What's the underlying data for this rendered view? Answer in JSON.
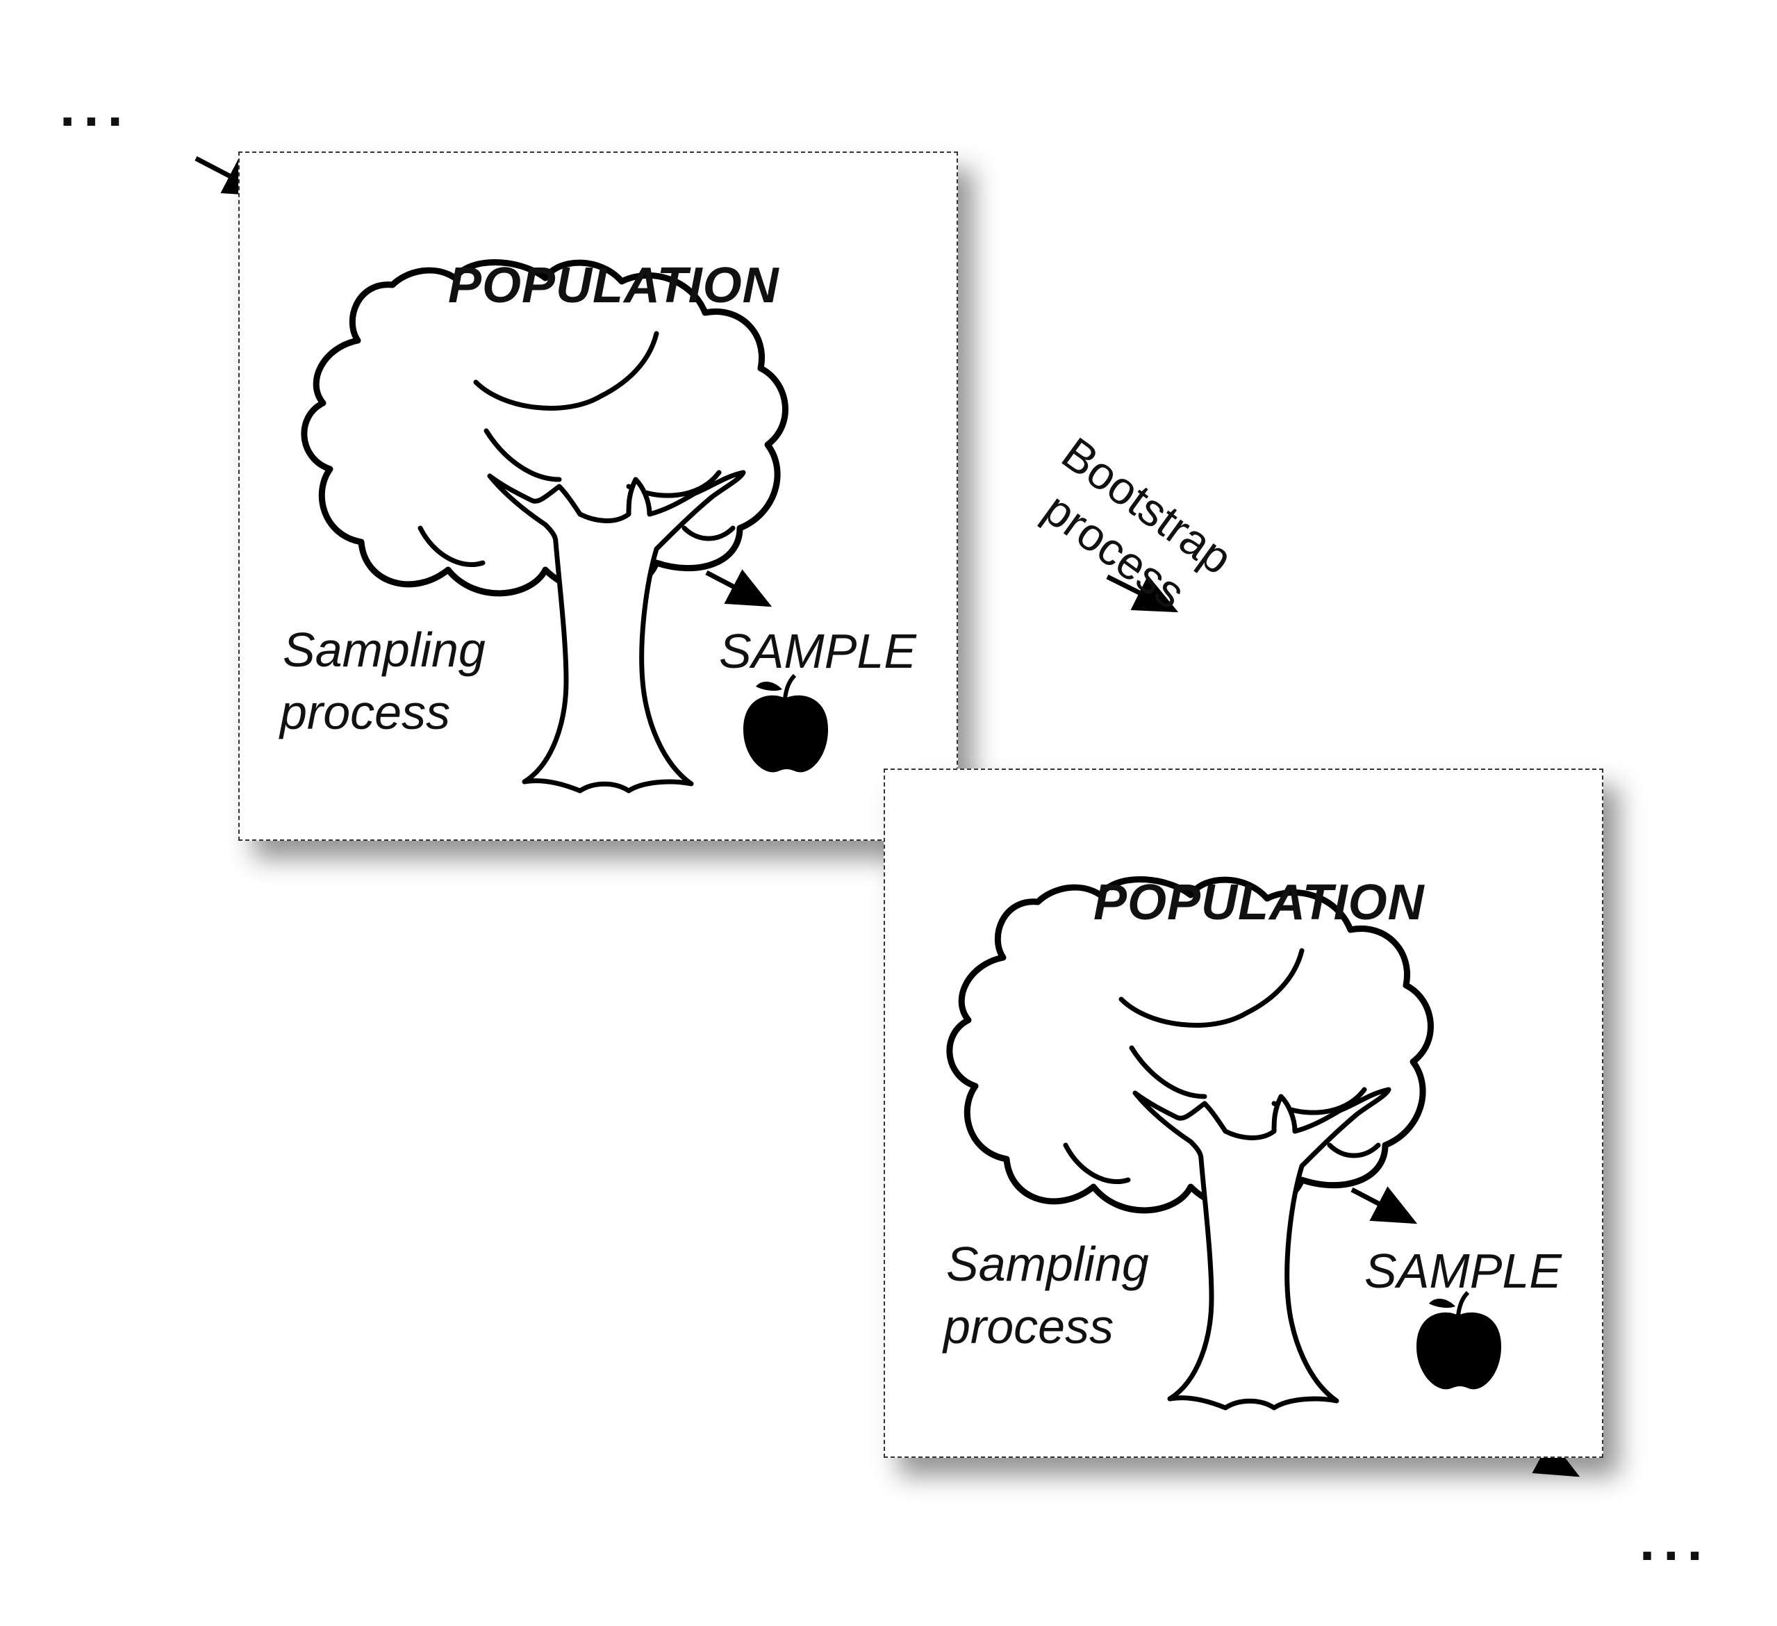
{
  "diagram": {
    "top_left_ellipsis": "...",
    "bottom_right_ellipsis": "...",
    "bootstrap_label_line1": "Bootstrap",
    "bootstrap_label_line2": "process",
    "panels": [
      {
        "population_label": "POPULATION",
        "sampling_line1": "Sampling",
        "sampling_line2": "process",
        "sample_label": "SAMPLE"
      },
      {
        "population_label": "POPULATION",
        "sampling_line1": "Sampling",
        "sampling_line2": "process",
        "sample_label": "SAMPLE"
      }
    ]
  }
}
